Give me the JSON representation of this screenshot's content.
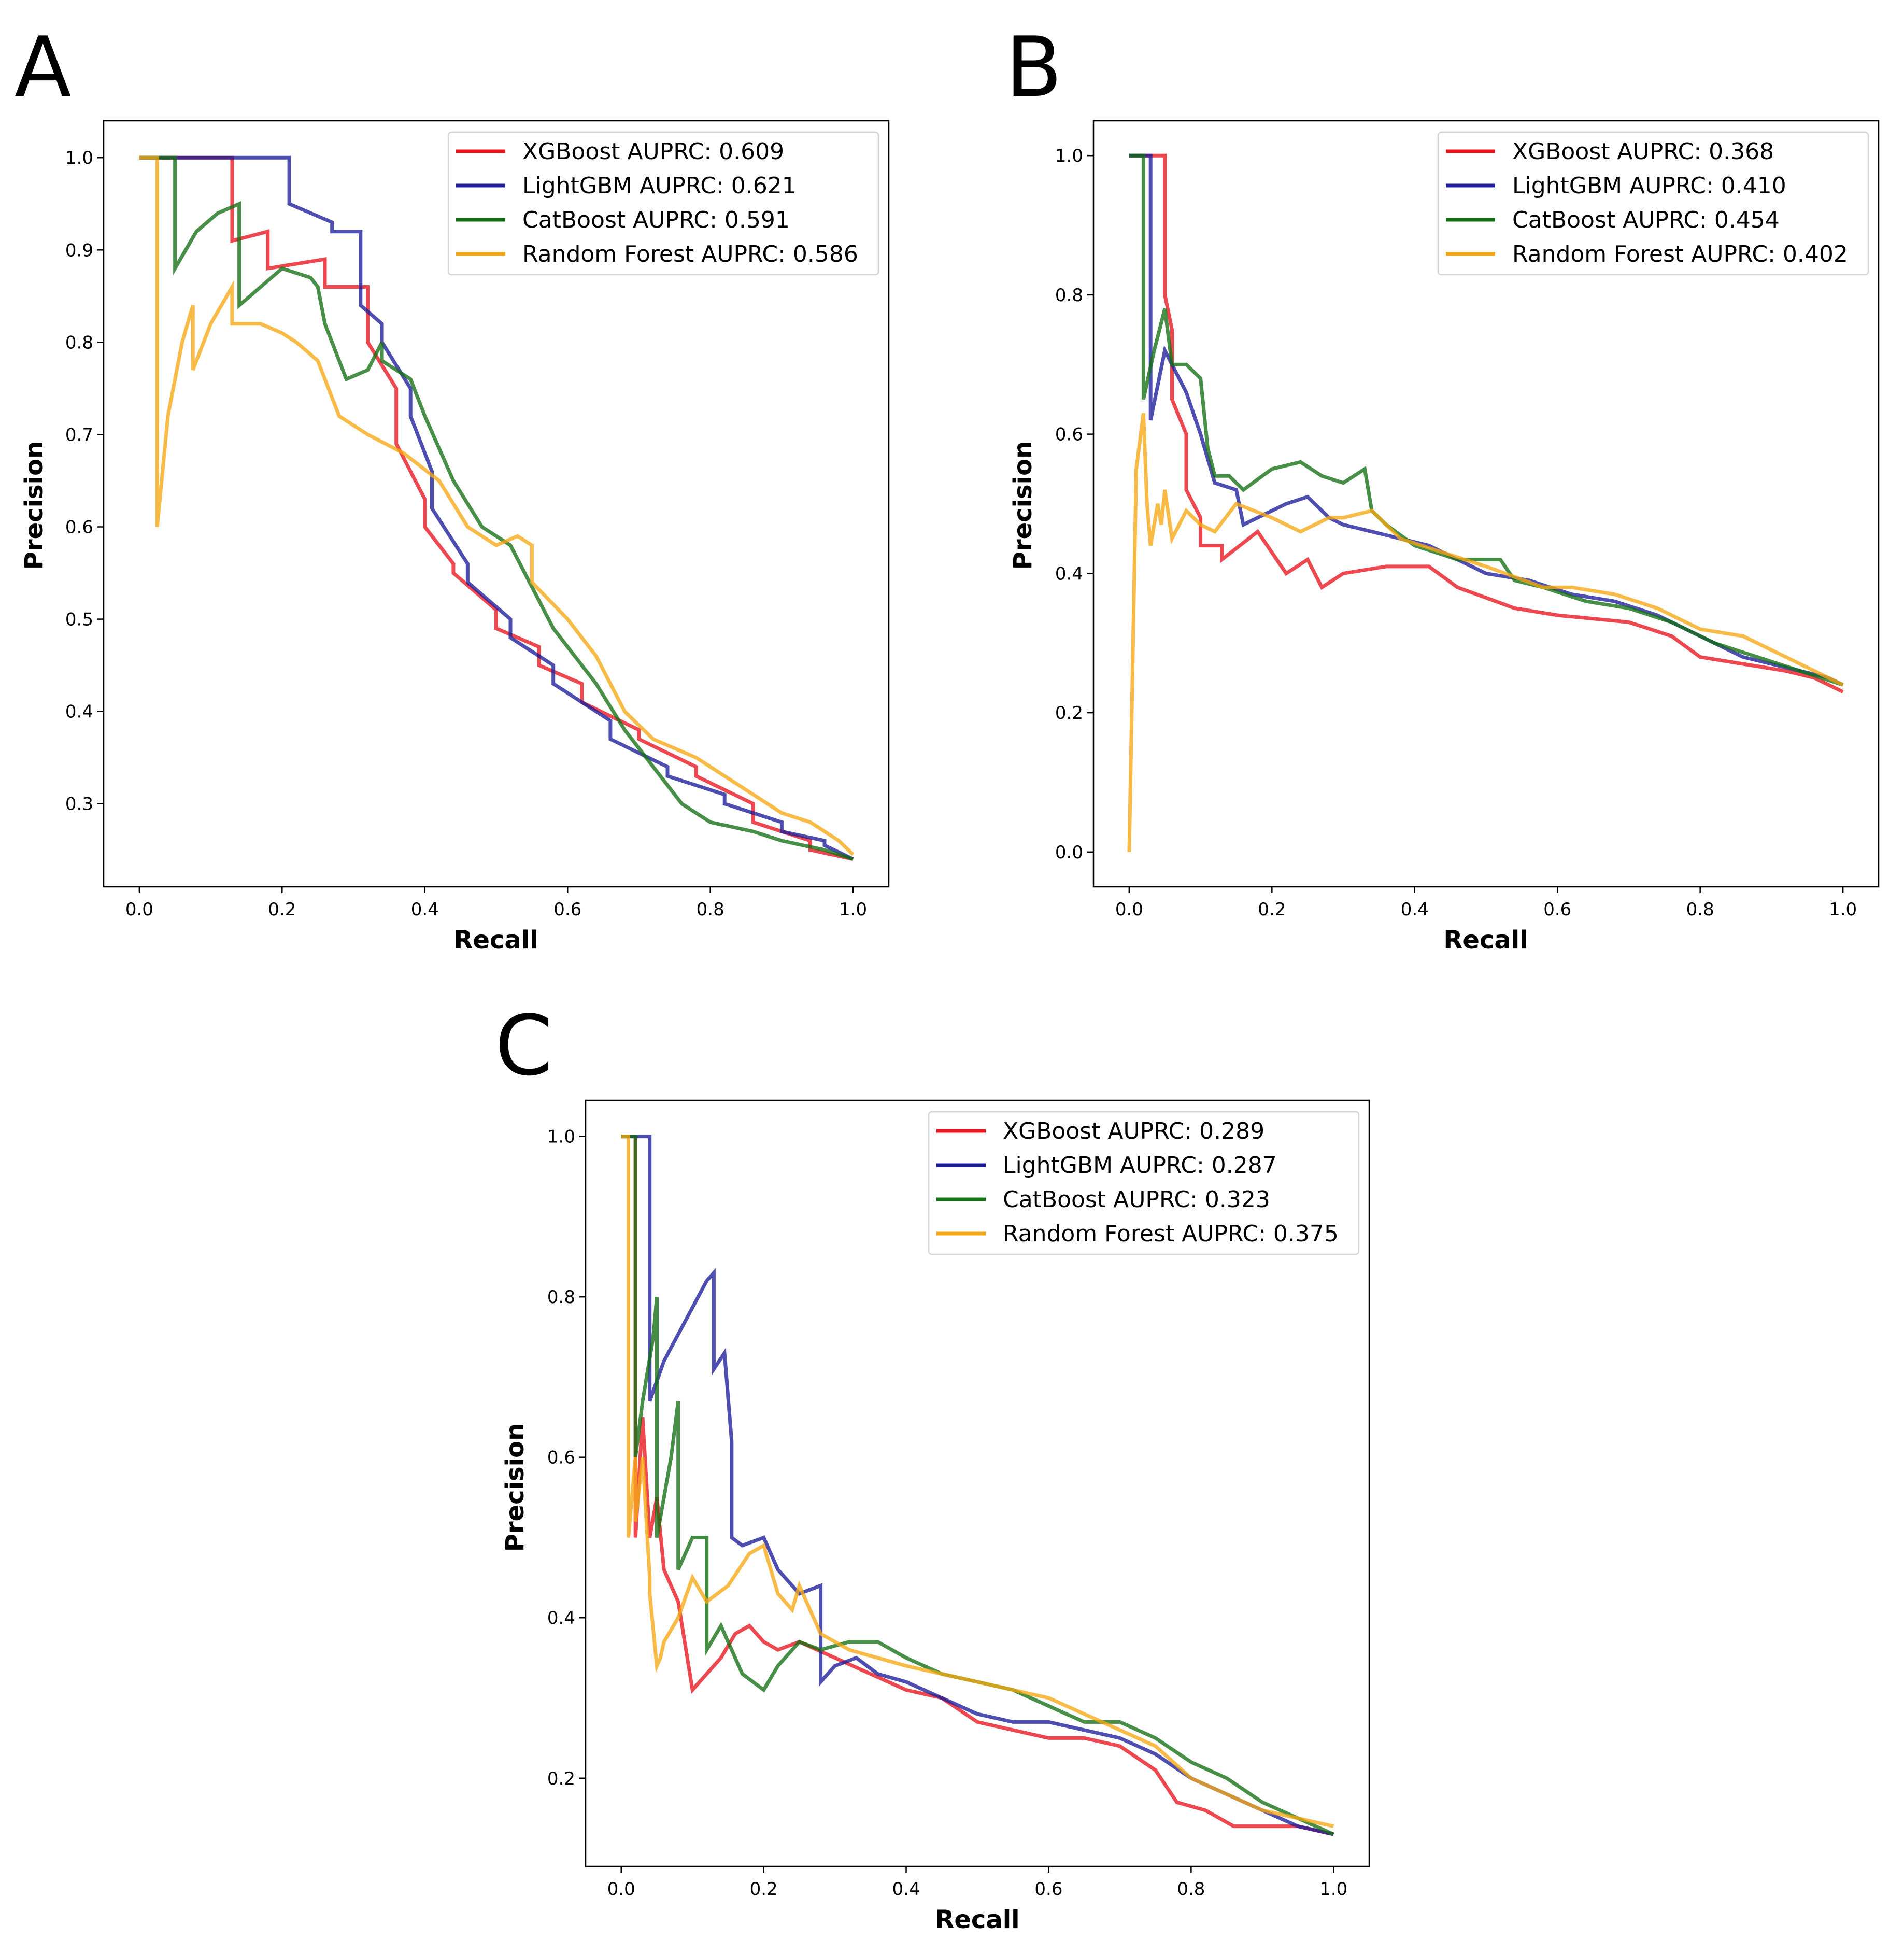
{
  "figure": {
    "panels": [
      "A",
      "B",
      "C"
    ]
  },
  "colors": {
    "XGBoost": "#e8151d",
    "LightGBM": "#1c1c9a",
    "CatBoost": "#136f13",
    "Random Forest": "#f6a813"
  },
  "chart_data": [
    {
      "panel": "A",
      "type": "line",
      "title": "",
      "xlabel": "Recall",
      "ylabel": "Precision",
      "xlim": [
        -0.05,
        1.05
      ],
      "ylim": [
        0.21,
        1.04
      ],
      "xticks": [
        "0.0",
        "0.2",
        "0.4",
        "0.6",
        "0.8",
        "1.0"
      ],
      "xtick_values": [
        0.0,
        0.2,
        0.4,
        0.6,
        0.8,
        1.0
      ],
      "yticks": [
        "0.3",
        "0.4",
        "0.5",
        "0.6",
        "0.7",
        "0.8",
        "0.9",
        "1.0"
      ],
      "ytick_values": [
        0.3,
        0.4,
        0.5,
        0.6,
        0.7,
        0.8,
        0.9,
        1.0
      ],
      "legend": [
        "XGBoost AUPRC: 0.609",
        "LightGBM AUPRC: 0.621",
        "CatBoost AUPRC: 0.591",
        "Random Forest AUPRC: 0.586"
      ],
      "legend_position": "top-right",
      "series": [
        {
          "name": "XGBoost",
          "x": [
            0,
            0.13,
            0.13,
            0.18,
            0.18,
            0.26,
            0.26,
            0.32,
            0.32,
            0.36,
            0.36,
            0.4,
            0.4,
            0.44,
            0.44,
            0.5,
            0.5,
            0.56,
            0.56,
            0.62,
            0.62,
            0.7,
            0.7,
            0.78,
            0.78,
            0.86,
            0.86,
            0.94,
            0.94,
            1.0
          ],
          "y": [
            1.0,
            1.0,
            0.91,
            0.92,
            0.88,
            0.89,
            0.86,
            0.86,
            0.8,
            0.75,
            0.69,
            0.63,
            0.6,
            0.56,
            0.55,
            0.51,
            0.49,
            0.47,
            0.45,
            0.43,
            0.41,
            0.38,
            0.37,
            0.34,
            0.33,
            0.3,
            0.28,
            0.26,
            0.25,
            0.24
          ]
        },
        {
          "name": "LightGBM",
          "x": [
            0,
            0.21,
            0.21,
            0.27,
            0.27,
            0.31,
            0.31,
            0.34,
            0.34,
            0.38,
            0.38,
            0.41,
            0.41,
            0.46,
            0.46,
            0.52,
            0.52,
            0.58,
            0.58,
            0.66,
            0.66,
            0.74,
            0.74,
            0.82,
            0.82,
            0.9,
            0.9,
            0.96,
            0.96,
            1.0
          ],
          "y": [
            1.0,
            1.0,
            0.95,
            0.93,
            0.92,
            0.92,
            0.84,
            0.82,
            0.8,
            0.75,
            0.72,
            0.66,
            0.62,
            0.56,
            0.54,
            0.5,
            0.48,
            0.45,
            0.43,
            0.39,
            0.37,
            0.34,
            0.33,
            0.31,
            0.3,
            0.28,
            0.27,
            0.26,
            0.255,
            0.24
          ]
        },
        {
          "name": "CatBoost",
          "x": [
            0,
            0.05,
            0.05,
            0.08,
            0.11,
            0.14,
            0.14,
            0.2,
            0.24,
            0.25,
            0.26,
            0.29,
            0.32,
            0.34,
            0.34,
            0.38,
            0.4,
            0.44,
            0.48,
            0.52,
            0.54,
            0.58,
            0.64,
            0.68,
            0.72,
            0.76,
            0.8,
            0.86,
            0.9,
            0.96,
            1.0
          ],
          "y": [
            1.0,
            1.0,
            0.88,
            0.92,
            0.94,
            0.95,
            0.84,
            0.88,
            0.87,
            0.86,
            0.82,
            0.76,
            0.77,
            0.8,
            0.78,
            0.76,
            0.72,
            0.65,
            0.6,
            0.58,
            0.55,
            0.49,
            0.43,
            0.38,
            0.34,
            0.3,
            0.28,
            0.27,
            0.26,
            0.25,
            0.24
          ]
        },
        {
          "name": "Random Forest",
          "x": [
            0,
            0.025,
            0.025,
            0.04,
            0.06,
            0.075,
            0.075,
            0.1,
            0.13,
            0.13,
            0.17,
            0.2,
            0.22,
            0.25,
            0.28,
            0.32,
            0.37,
            0.42,
            0.46,
            0.5,
            0.53,
            0.55,
            0.55,
            0.6,
            0.64,
            0.68,
            0.72,
            0.78,
            0.84,
            0.9,
            0.94,
            0.98,
            1.0
          ],
          "y": [
            1.0,
            1.0,
            0.6,
            0.72,
            0.8,
            0.84,
            0.77,
            0.82,
            0.86,
            0.82,
            0.82,
            0.81,
            0.8,
            0.78,
            0.72,
            0.7,
            0.68,
            0.65,
            0.6,
            0.58,
            0.59,
            0.58,
            0.54,
            0.5,
            0.46,
            0.4,
            0.37,
            0.35,
            0.32,
            0.29,
            0.28,
            0.26,
            0.245
          ]
        }
      ]
    },
    {
      "panel": "B",
      "type": "line",
      "title": "",
      "xlabel": "Recall",
      "ylabel": "Precision",
      "xlim": [
        -0.05,
        1.05
      ],
      "ylim": [
        -0.05,
        1.05
      ],
      "xticks": [
        "0.0",
        "0.2",
        "0.4",
        "0.6",
        "0.8",
        "1.0"
      ],
      "xtick_values": [
        0.0,
        0.2,
        0.4,
        0.6,
        0.8,
        1.0
      ],
      "yticks": [
        "0.0",
        "0.2",
        "0.4",
        "0.6",
        "0.8",
        "1.0"
      ],
      "ytick_values": [
        0.0,
        0.2,
        0.4,
        0.6,
        0.8,
        1.0
      ],
      "legend": [
        "XGBoost AUPRC: 0.368",
        "LightGBM AUPRC: 0.410",
        "CatBoost AUPRC: 0.454",
        "Random Forest AUPRC: 0.402"
      ],
      "legend_position": "top-right",
      "series": [
        {
          "name": "XGBoost",
          "x": [
            0,
            0.05,
            0.05,
            0.06,
            0.06,
            0.08,
            0.08,
            0.1,
            0.1,
            0.13,
            0.13,
            0.18,
            0.22,
            0.25,
            0.27,
            0.3,
            0.36,
            0.42,
            0.46,
            0.54,
            0.6,
            0.7,
            0.76,
            0.8,
            0.86,
            0.92,
            0.96,
            1.0
          ],
          "y": [
            1.0,
            1.0,
            0.8,
            0.75,
            0.65,
            0.6,
            0.52,
            0.48,
            0.44,
            0.44,
            0.42,
            0.46,
            0.4,
            0.42,
            0.38,
            0.4,
            0.41,
            0.41,
            0.38,
            0.35,
            0.34,
            0.33,
            0.31,
            0.28,
            0.27,
            0.26,
            0.25,
            0.23
          ]
        },
        {
          "name": "LightGBM",
          "x": [
            0,
            0.03,
            0.03,
            0.05,
            0.08,
            0.1,
            0.12,
            0.15,
            0.16,
            0.2,
            0.22,
            0.25,
            0.28,
            0.3,
            0.34,
            0.38,
            0.42,
            0.46,
            0.5,
            0.56,
            0.62,
            0.68,
            0.74,
            0.78,
            0.82,
            0.86,
            0.9,
            0.94,
            0.98,
            1.0
          ],
          "y": [
            1.0,
            1.0,
            0.62,
            0.72,
            0.66,
            0.6,
            0.53,
            0.52,
            0.47,
            0.49,
            0.5,
            0.51,
            0.48,
            0.47,
            0.46,
            0.45,
            0.44,
            0.42,
            0.4,
            0.39,
            0.37,
            0.36,
            0.34,
            0.32,
            0.3,
            0.28,
            0.27,
            0.26,
            0.25,
            0.24
          ]
        },
        {
          "name": "CatBoost",
          "x": [
            0,
            0.02,
            0.02,
            0.035,
            0.05,
            0.06,
            0.08,
            0.1,
            0.11,
            0.12,
            0.14,
            0.16,
            0.2,
            0.24,
            0.27,
            0.3,
            0.33,
            0.34,
            0.36,
            0.4,
            0.46,
            0.52,
            0.54,
            0.58,
            0.64,
            0.7,
            0.76,
            0.82,
            0.88,
            0.94,
            1.0
          ],
          "y": [
            1.0,
            1.0,
            0.65,
            0.72,
            0.78,
            0.7,
            0.7,
            0.68,
            0.58,
            0.54,
            0.54,
            0.52,
            0.55,
            0.56,
            0.54,
            0.53,
            0.55,
            0.49,
            0.47,
            0.44,
            0.42,
            0.42,
            0.39,
            0.38,
            0.36,
            0.35,
            0.33,
            0.3,
            0.28,
            0.26,
            0.24
          ]
        },
        {
          "name": "Random Forest",
          "x": [
            0,
            0.01,
            0.02,
            0.025,
            0.03,
            0.04,
            0.045,
            0.05,
            0.06,
            0.07,
            0.08,
            0.1,
            0.12,
            0.15,
            0.2,
            0.24,
            0.28,
            0.3,
            0.34,
            0.38,
            0.44,
            0.5,
            0.58,
            0.62,
            0.68,
            0.74,
            0.8,
            0.86,
            0.92,
            0.96,
            1.0
          ],
          "y": [
            0.0,
            0.55,
            0.63,
            0.5,
            0.44,
            0.5,
            0.47,
            0.52,
            0.45,
            0.47,
            0.49,
            0.47,
            0.46,
            0.5,
            0.48,
            0.46,
            0.48,
            0.48,
            0.49,
            0.45,
            0.43,
            0.41,
            0.38,
            0.38,
            0.37,
            0.35,
            0.32,
            0.31,
            0.28,
            0.26,
            0.24
          ]
        }
      ]
    },
    {
      "panel": "C",
      "type": "line",
      "title": "",
      "xlabel": "Recall",
      "ylabel": "Precision",
      "xlim": [
        -0.05,
        1.05
      ],
      "ylim": [
        0.09,
        1.045
      ],
      "xticks": [
        "0.0",
        "0.2",
        "0.4",
        "0.6",
        "0.8",
        "1.0"
      ],
      "xtick_values": [
        0.0,
        0.2,
        0.4,
        0.6,
        0.8,
        1.0
      ],
      "yticks": [
        "0.2",
        "0.4",
        "0.6",
        "0.8",
        "1.0"
      ],
      "ytick_values": [
        0.2,
        0.4,
        0.6,
        0.8,
        1.0
      ],
      "legend": [
        "XGBoost AUPRC: 0.289",
        "LightGBM AUPRC: 0.287",
        "CatBoost AUPRC: 0.323",
        "Random Forest AUPRC: 0.375"
      ],
      "legend_position": "top-right",
      "series": [
        {
          "name": "XGBoost",
          "x": [
            0,
            0.02,
            0.02,
            0.03,
            0.04,
            0.05,
            0.06,
            0.08,
            0.1,
            0.11,
            0.14,
            0.16,
            0.18,
            0.2,
            0.22,
            0.25,
            0.3,
            0.35,
            0.4,
            0.45,
            0.5,
            0.55,
            0.6,
            0.65,
            0.7,
            0.75,
            0.78,
            0.82,
            0.86,
            0.9,
            0.95,
            1.0
          ],
          "y": [
            1.0,
            1.0,
            0.5,
            0.65,
            0.5,
            0.55,
            0.46,
            0.42,
            0.31,
            0.32,
            0.35,
            0.38,
            0.39,
            0.37,
            0.36,
            0.37,
            0.35,
            0.33,
            0.31,
            0.3,
            0.27,
            0.26,
            0.25,
            0.25,
            0.24,
            0.21,
            0.17,
            0.16,
            0.14,
            0.14,
            0.14,
            0.13
          ]
        },
        {
          "name": "LightGBM",
          "x": [
            0,
            0.04,
            0.04,
            0.06,
            0.09,
            0.12,
            0.13,
            0.13,
            0.145,
            0.155,
            0.155,
            0.17,
            0.2,
            0.22,
            0.25,
            0.28,
            0.28,
            0.3,
            0.33,
            0.36,
            0.4,
            0.45,
            0.5,
            0.55,
            0.6,
            0.65,
            0.7,
            0.75,
            0.8,
            0.85,
            0.9,
            0.95,
            1.0
          ],
          "y": [
            1.0,
            1.0,
            0.67,
            0.72,
            0.77,
            0.82,
            0.83,
            0.71,
            0.73,
            0.62,
            0.5,
            0.49,
            0.5,
            0.46,
            0.43,
            0.44,
            0.32,
            0.34,
            0.35,
            0.33,
            0.32,
            0.3,
            0.28,
            0.27,
            0.27,
            0.26,
            0.25,
            0.23,
            0.2,
            0.18,
            0.16,
            0.14,
            0.13
          ]
        },
        {
          "name": "CatBoost",
          "x": [
            0,
            0.02,
            0.02,
            0.03,
            0.045,
            0.05,
            0.05,
            0.07,
            0.08,
            0.08,
            0.1,
            0.12,
            0.12,
            0.14,
            0.17,
            0.2,
            0.22,
            0.25,
            0.28,
            0.32,
            0.36,
            0.4,
            0.45,
            0.5,
            0.55,
            0.6,
            0.65,
            0.7,
            0.75,
            0.8,
            0.85,
            0.9,
            0.95,
            1.0
          ],
          "y": [
            1.0,
            1.0,
            0.6,
            0.67,
            0.75,
            0.8,
            0.5,
            0.6,
            0.67,
            0.46,
            0.5,
            0.5,
            0.36,
            0.39,
            0.33,
            0.31,
            0.34,
            0.37,
            0.36,
            0.37,
            0.37,
            0.35,
            0.33,
            0.32,
            0.31,
            0.29,
            0.27,
            0.27,
            0.25,
            0.22,
            0.2,
            0.17,
            0.15,
            0.13
          ]
        },
        {
          "name": "Random Forest",
          "x": [
            0,
            0.01,
            0.01,
            0.02,
            0.02,
            0.03,
            0.04,
            0.04,
            0.05,
            0.055,
            0.06,
            0.08,
            0.1,
            0.12,
            0.15,
            0.18,
            0.2,
            0.22,
            0.24,
            0.25,
            0.28,
            0.32,
            0.36,
            0.4,
            0.45,
            0.5,
            0.55,
            0.6,
            0.65,
            0.7,
            0.75,
            0.8,
            0.85,
            0.9,
            0.95,
            1.0
          ],
          "y": [
            1.0,
            1.0,
            0.5,
            0.6,
            0.52,
            0.6,
            0.45,
            0.43,
            0.34,
            0.35,
            0.37,
            0.4,
            0.45,
            0.42,
            0.44,
            0.48,
            0.49,
            0.43,
            0.41,
            0.44,
            0.38,
            0.36,
            0.35,
            0.34,
            0.33,
            0.32,
            0.31,
            0.3,
            0.28,
            0.26,
            0.24,
            0.2,
            0.18,
            0.16,
            0.15,
            0.14
          ]
        }
      ]
    }
  ]
}
